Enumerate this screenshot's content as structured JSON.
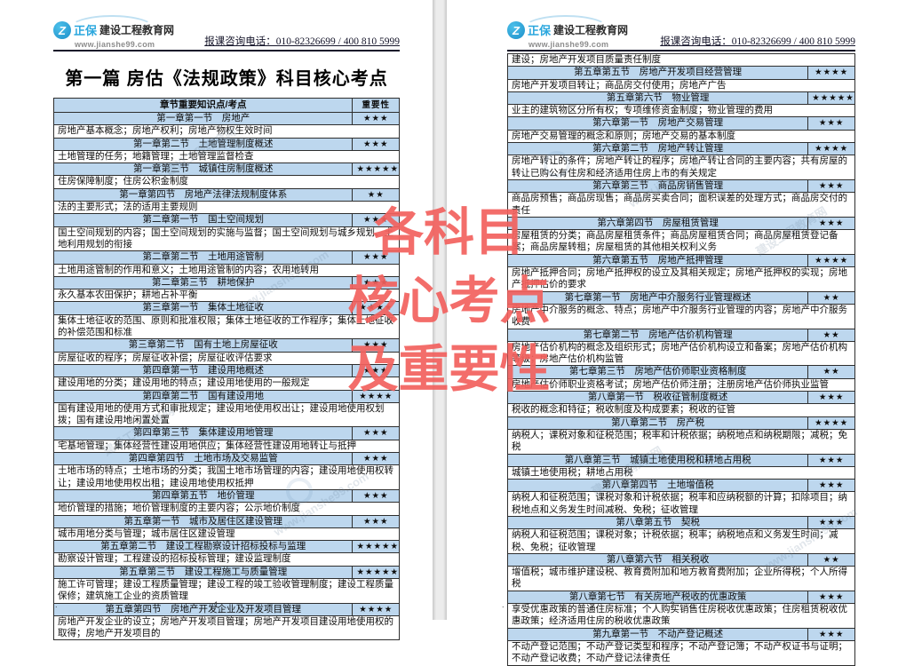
{
  "header": {
    "brand_cn": "正保",
    "brand_suffix": "建设工程教育网",
    "brand_url": "www.jianshe99.com",
    "logo_glyph": "Z",
    "phone_label": "报课咨询电话：010-82326699 / 400 810 5999"
  },
  "watermark": {
    "lines": [
      "各科目",
      "核心考点",
      "及重要性"
    ],
    "color": "#f2615e"
  },
  "ghost_watermark": {
    "site_name": "建设工程教育网",
    "site_url": "www.jianshe99.com"
  },
  "left_page": {
    "title": "第一篇 房估《法规政策》科目核心考点",
    "table_header": {
      "col1": "章节重要知识点/考点",
      "col2": "重要性"
    },
    "rows": [
      {
        "type": "section",
        "text": "第一章第一节　房地产",
        "stars": 3
      },
      {
        "type": "detail",
        "text": "房地产基本概念；房地产权利；房地产物权生效时间"
      },
      {
        "type": "section",
        "text": "第一章第二节　土地管理制度概述",
        "stars": 3
      },
      {
        "type": "detail",
        "text": "土地管理的任务；地籍管理；土地管理监督检查"
      },
      {
        "type": "section",
        "text": "第一章第三节　城镇住房制度概述",
        "stars": 5
      },
      {
        "type": "detail",
        "text": "住房保障制度；住房公积金制度"
      },
      {
        "type": "section",
        "text": "第一章第四节　房地产法律法规制度体系",
        "stars": 2
      },
      {
        "type": "detail",
        "text": "法的主要形式；法的适用主要规则"
      },
      {
        "type": "section",
        "text": "第二章第一节　国土空间规划",
        "stars": 3
      },
      {
        "type": "detail",
        "text": "国土空间规划的内容；国土空间规划的实施与监督；国土空间规划与城乡规划、土地利用规划的衔接"
      },
      {
        "type": "section",
        "text": "第二章第二节　土地用途管制",
        "stars": 3
      },
      {
        "type": "detail",
        "text": "土地用途管制的作用和意义；土地用途管制的内容；农用地转用"
      },
      {
        "type": "section",
        "text": "第二章第三节　耕地保护",
        "stars": 3
      },
      {
        "type": "detail",
        "text": "永久基本农田保护；耕地占补平衡"
      },
      {
        "type": "section",
        "text": "第三章第一节　集体土地征收",
        "stars": 4
      },
      {
        "type": "detail",
        "text": "集体土地征收的范围、原则和批准权限；集体土地征收的工作程序；集体土地征收的补偿范围和标准"
      },
      {
        "type": "section",
        "text": "第三章第二节　国有土地上房屋征收",
        "stars": 3
      },
      {
        "type": "detail",
        "text": "房屋征收的程序；房屋征收补偿；房屋征收评估要求"
      },
      {
        "type": "section",
        "text": "第四章第一节　建设用地概述",
        "stars": 3
      },
      {
        "type": "detail",
        "text": "建设用地的分类；建设用地的特点；建设用地使用的一般规定"
      },
      {
        "type": "section",
        "text": "第四章第二节　国有建设用地",
        "stars": 4
      },
      {
        "type": "detail",
        "text": "国有建设用地的使用方式和审批规定；建设用地使用权出让；建设用地使用权划拨；国有建设用地闲置处置"
      },
      {
        "type": "section",
        "text": "第四章第三节　集体建设用地管理",
        "stars": 3
      },
      {
        "type": "detail",
        "text": "宅基地管理；集体经营性建设用地供应；集体经营性建设用地转让与抵押"
      },
      {
        "type": "section",
        "text": "第四章第四节　土地市场及交易监管",
        "stars": 3
      },
      {
        "type": "detail",
        "text": "土地市场的特点；土地市场的分类；我国土地市场管理的内容；建设用地使用权转让；建设用地使用权出租；建设用地使用权抵押"
      },
      {
        "type": "section",
        "text": "第四章第五节　地价管理",
        "stars": 3
      },
      {
        "type": "detail",
        "text": "地价管理的措施；地价管理制度的主要内容；公示地价制度"
      },
      {
        "type": "section",
        "text": "第五章第一节　城市及居住区建设管理",
        "stars": 3
      },
      {
        "type": "detail",
        "text": "城市用地分类与管理；城市居住区建设管理"
      },
      {
        "type": "section",
        "text": "第五章第二节　建设工程勘察设计招标投标与监理",
        "stars": 5
      },
      {
        "type": "detail",
        "text": "勘察设计管理；工程建设的招标投标管理；建设监理制度"
      },
      {
        "type": "section",
        "text": "第五章第三节　建设工程施工与质量管理",
        "stars": 5
      },
      {
        "type": "detail",
        "text": "施工许可管理；建设工程质量管理；建设工程的竣工验收管理制度；建设工程质量保修；建筑施工企业的资质管理"
      },
      {
        "type": "section",
        "text": "第五章第四节　房地产开发企业及开发项目管理",
        "stars": 4
      },
      {
        "type": "detail",
        "text": "房地产开发企业的设立；房地产开发项目管理；房地产开发项目建设用地使用权的取得；房地产开发项目的"
      }
    ],
    "footer_dot": ".",
    "page_number": "1"
  },
  "right_page": {
    "rows": [
      {
        "type": "detail",
        "text": "建设；房地产开发项目质量责任制度"
      },
      {
        "type": "section",
        "text": "第五章第五节　房地产开发项目经营管理",
        "stars": 4
      },
      {
        "type": "detail",
        "text": "房地产开发项目转让；商品房交付使用；房地产广告"
      },
      {
        "type": "section",
        "text": "第五章第六节　物业管理",
        "stars": 5
      },
      {
        "type": "detail",
        "text": "业主的建筑物区分所有权；专项维修资金制度；物业管理的费用"
      },
      {
        "type": "section",
        "text": "第六章第一节　房地产交易管理",
        "stars": 3
      },
      {
        "type": "detail",
        "text": "房地产交易管理的概念和原则；房地产交易的基本制度"
      },
      {
        "type": "section",
        "text": "第六章第二节　房地产转让管理",
        "stars": 4
      },
      {
        "type": "detail",
        "text": "房地产转让的条件；房地产转让的程序；房地产转让合同的主要内容；共有房屋的转让已购公有住房和经济适用住房上市的有关规定"
      },
      {
        "type": "section",
        "text": "第六章第三节　商品房销售管理",
        "stars": 3
      },
      {
        "type": "detail",
        "text": "商品房预售；商品房现售；商品房买卖合同；面积误差的处理方式；商品房交付的责任"
      },
      {
        "type": "section",
        "text": "第六章第四节　房屋租赁管理",
        "stars": 3
      },
      {
        "type": "detail",
        "text": "房屋租赁的分类；商品房屋租赁条件；商品房屋租赁合同；商品房屋租赁登记备案；商品房屋转租；房屋租赁的其他相关权利义务"
      },
      {
        "type": "section",
        "text": "第六章第五节　房地产抵押管理",
        "stars": 4
      },
      {
        "type": "detail",
        "text": "房地产抵押合同；房地产抵押权的设立及其相关规定；房地产抵押权的实现；房地产抵押估价的要求"
      },
      {
        "type": "section",
        "text": "第七章第一节　房地产中介服务行业管理概述",
        "stars": 2
      },
      {
        "type": "detail",
        "text": "房地产中介服务的概念、特点；房地产中介服务行业管理的内容；房地产中介服务收费"
      },
      {
        "type": "section",
        "text": "第七章第二节　房地产估价机构管理",
        "stars": 2
      },
      {
        "type": "detail",
        "text": "房地产估价机构的概念及组织形式；房地产估价机构设立和备案；房地产估价机构等级；房地产估价机构监管"
      },
      {
        "type": "section",
        "text": "第七章第三节　房地产估价师职业资格制度",
        "stars": 2
      },
      {
        "type": "detail",
        "text": "房地产估价师职业资格考试；房地产估价师注册；注册房地产估价师执业监管"
      },
      {
        "type": "section",
        "text": "第八章第一节　税收征管制度概述",
        "stars": 3
      },
      {
        "type": "detail",
        "text": "税收的概念和特征；税收制度及构成要素；税收的征管"
      },
      {
        "type": "section",
        "text": "第八章第二节　房产税",
        "stars": 4
      },
      {
        "type": "detail",
        "text": "纳税人；课税对象和征税范围；税率和计税依据；纳税地点和纳税期限；减税；免税"
      },
      {
        "type": "section",
        "text": "第八章第三节　城镇土地使用税和耕地占用税",
        "stars": 3
      },
      {
        "type": "detail",
        "text": "城镇土地使用税；耕地占用税"
      },
      {
        "type": "section",
        "text": "第八章第四节　土地增值税",
        "stars": 3
      },
      {
        "type": "detail",
        "text": "纳税人和征税范围；课税对象和计税依据；税率和应纳税额的计算；扣除项目；纳税地点和义务发生时间减税、免税；征收管理"
      },
      {
        "type": "section",
        "text": "第八章第五节　契税",
        "stars": 3
      },
      {
        "type": "detail",
        "text": "纳税人和征税范围；课税对象；计税依据；税率；纳税地点和义务发生时间；减税、免税；征收管理"
      },
      {
        "type": "section",
        "text": "第八章第六节　相关税收",
        "stars": 2
      },
      {
        "type": "detail",
        "text": "增值税；城市维护建设税、教育费附加和地方教育费附加；企业所得税；个人所得税"
      },
      {
        "type": "section",
        "text": "第八章第七节　有关房地产税收的优惠政策",
        "stars": 3
      },
      {
        "type": "detail",
        "text": "享受优惠政策的普通住房标准；个人购买销售住房税收优惠政策；住房租赁税收优惠政策；经济适用住房的税收优惠政策"
      },
      {
        "type": "section",
        "text": "第九章第一节　不动产登记概述",
        "stars": 3
      },
      {
        "type": "detail",
        "text": "不动产登记范围；不动产登记类型和程序；不动产登记簿；不动产权证书与证明；不动产登记收费；不动产登记法律责任"
      }
    ],
    "footer_dot": ".",
    "page_number": "2"
  }
}
